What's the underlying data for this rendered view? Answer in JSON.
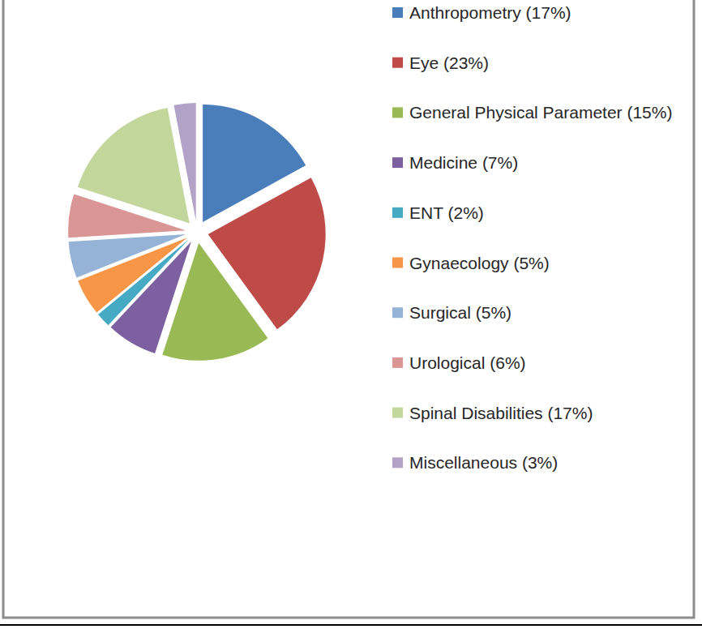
{
  "chart_data": {
    "type": "pie",
    "categories": [
      "Anthropometry (17%)",
      "Eye (23%)",
      "General Physical Parameter (15%)",
      "Medicine (7%)",
      "ENT (2%)",
      "Gynaecology (5%)",
      "Surgical (5%)",
      "Urological (6%)",
      "Spinal Disabilities (17%)",
      "Miscellaneous (3%)"
    ],
    "values": [
      17,
      23,
      15,
      7,
      2,
      5,
      5,
      6,
      17,
      3
    ],
    "colors": [
      "#4a7ebb",
      "#be4b48",
      "#98b954",
      "#7d60a0",
      "#46aac5",
      "#f79646",
      "#95b3d7",
      "#d99694",
      "#c3d69b",
      "#b3a2c7"
    ],
    "legend": "right"
  }
}
